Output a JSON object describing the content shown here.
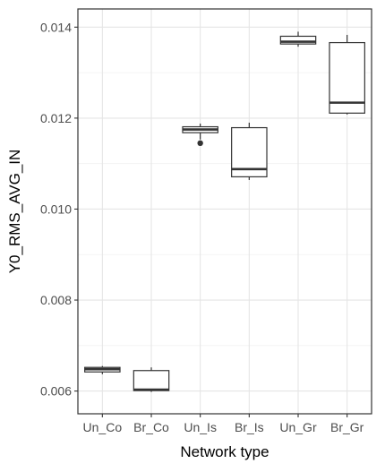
{
  "chart_data": {
    "type": "box",
    "title": "",
    "xlabel": "Network type",
    "ylabel": "Y0_RMS_AVG_IN",
    "ylim": [
      0.0055,
      0.0144
    ],
    "yticks": [
      0.006,
      0.008,
      0.01,
      0.012,
      0.014
    ],
    "ytick_labels": [
      "0.006",
      "0.008",
      "0.010",
      "0.012",
      "0.014"
    ],
    "grid": true,
    "legend": "none",
    "categories": [
      "Un_Co",
      "Br_Co",
      "Un_Is",
      "Br_Is",
      "Un_Gr",
      "Br_Gr"
    ],
    "boxes": [
      {
        "category": "Un_Co",
        "min": 0.00637,
        "q1": 0.00642,
        "median": 0.00648,
        "q3": 0.00652,
        "max": 0.00655,
        "outliers": []
      },
      {
        "category": "Br_Co",
        "min": 0.00598,
        "q1": 0.00601,
        "median": 0.00603,
        "q3": 0.00645,
        "max": 0.00652,
        "outliers": []
      },
      {
        "category": "Un_Is",
        "min": 0.01153,
        "q1": 0.01168,
        "median": 0.01175,
        "q3": 0.01181,
        "max": 0.01188,
        "outliers": [
          0.01145
        ]
      },
      {
        "category": "Br_Is",
        "min": 0.01064,
        "q1": 0.01071,
        "median": 0.01088,
        "q3": 0.01179,
        "max": 0.0119,
        "outliers": []
      },
      {
        "category": "Un_Gr",
        "min": 0.01357,
        "q1": 0.01363,
        "median": 0.01368,
        "q3": 0.0138,
        "max": 0.0139,
        "outliers": []
      },
      {
        "category": "Br_Gr",
        "min": 0.01208,
        "q1": 0.01211,
        "median": 0.01234,
        "q3": 0.01366,
        "max": 0.01383,
        "outliers": []
      }
    ],
    "colors": {
      "box_fill": "#ffffff",
      "box_stroke": "#333333",
      "median": "#333333",
      "grid_major": "#e5e5e5",
      "grid_minor": "#f2f2f2",
      "panel_border": "#333333",
      "tick": "#333333",
      "outlier": "#333333"
    }
  }
}
